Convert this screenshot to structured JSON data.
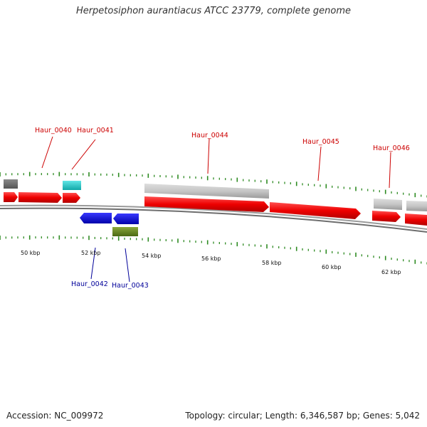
{
  "title": "Herpetosiphon aurantiacus ATCC 23779, complete genome",
  "footer": {
    "accession": "Accession: NC_009972",
    "summary": "Topology: circular; Length: 6,346,587 bp; Genes: 5,042"
  },
  "colors": {
    "forward_label": "#cc0000",
    "reverse_label": "#000099",
    "cds": "#ff0000",
    "backbone": "#888888",
    "ticks": "#2e8b22"
  },
  "scale_labels": [
    "50 kbp",
    "52 kbp",
    "54 kbp",
    "56 kbp",
    "58 kbp",
    "60 kbp",
    "62 kbp"
  ],
  "gene_labels": [
    {
      "text": "Haur_0040",
      "strand": "forward"
    },
    {
      "text": "Haur_0041",
      "strand": "forward"
    },
    {
      "text": "Haur_0044",
      "strand": "forward"
    },
    {
      "text": "Haur_0045",
      "strand": "forward"
    },
    {
      "text": "Haur_0046",
      "strand": "forward"
    },
    {
      "text": "Haur_0042",
      "strand": "reverse"
    },
    {
      "text": "Haur_0043",
      "strand": "reverse"
    }
  ]
}
